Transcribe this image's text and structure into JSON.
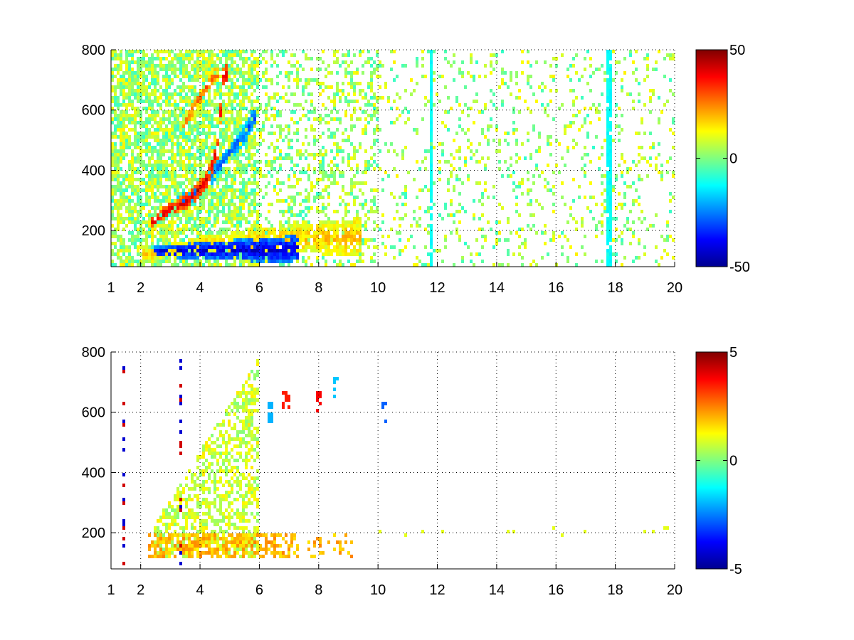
{
  "chart_data": [
    {
      "type": "heatmap",
      "colormap": "jet",
      "x_range": [
        1,
        20
      ],
      "y_range": [
        80,
        800
      ],
      "x_ticks": [
        {
          "value": 1,
          "label": "1"
        },
        {
          "value": 2,
          "label": "2"
        },
        {
          "value": 4,
          "label": "4"
        },
        {
          "value": 6,
          "label": "6"
        },
        {
          "value": 8,
          "label": "8"
        },
        {
          "value": 10,
          "label": "10"
        },
        {
          "value": 12,
          "label": "12"
        },
        {
          "value": 14,
          "label": "14"
        },
        {
          "value": 16,
          "label": "16"
        },
        {
          "value": 18,
          "label": "18"
        },
        {
          "value": 20,
          "label": "20"
        }
      ],
      "y_ticks": [
        {
          "value": 200,
          "label": "200"
        },
        {
          "value": 400,
          "label": "400"
        },
        {
          "value": 600,
          "label": "600"
        },
        {
          "value": 800,
          "label": "800"
        }
      ],
      "colorbar": {
        "range": [
          -50,
          50
        ],
        "ticks": [
          {
            "value": 50,
            "label": "50"
          },
          {
            "value": 0,
            "label": "0"
          },
          {
            "value": -50,
            "label": "-50"
          }
        ]
      },
      "grid": true,
      "ridges": [
        {
          "xs": [
            2.4,
            3.0,
            3.6,
            4.2,
            4.6,
            4.8
          ],
          "ys": [
            230,
            270,
            300,
            360,
            470,
            720
          ],
          "value": 42
        },
        {
          "xs": [
            3.3,
            3.8,
            4.4,
            5.0,
            5.5,
            5.8
          ],
          "ys": [
            300,
            320,
            380,
            460,
            520,
            570
          ],
          "value": -28
        },
        {
          "xs": [
            3.5,
            3.8,
            4.1,
            4.5
          ],
          "ys": [
            560,
            610,
            660,
            720
          ],
          "value": 28
        },
        {
          "xs": [
            2.5,
            3.5,
            4.5,
            5.5,
            6.5,
            7.2
          ],
          "ys": [
            130,
            132,
            135,
            135,
            135,
            138
          ],
          "value": -42
        },
        {
          "xs": [
            2.2,
            4.0,
            7.0,
            9.3
          ],
          "ys": [
            120,
            150,
            170,
            180
          ],
          "value": 18
        }
      ],
      "noise_value_range": [
        -8,
        14
      ],
      "stripes": [
        {
          "x": 11.8,
          "value": -12
        },
        {
          "x": 17.8,
          "value": -12
        }
      ]
    },
    {
      "type": "heatmap",
      "colormap": "jet",
      "x_range": [
        1,
        20
      ],
      "y_range": [
        80,
        800
      ],
      "x_ticks": [
        {
          "value": 1,
          "label": "1"
        },
        {
          "value": 2,
          "label": "2"
        },
        {
          "value": 4,
          "label": "4"
        },
        {
          "value": 6,
          "label": "6"
        },
        {
          "value": 8,
          "label": "8"
        },
        {
          "value": 10,
          "label": "10"
        },
        {
          "value": 12,
          "label": "12"
        },
        {
          "value": 14,
          "label": "14"
        },
        {
          "value": 16,
          "label": "16"
        },
        {
          "value": 18,
          "label": "18"
        },
        {
          "value": 20,
          "label": "20"
        }
      ],
      "y_ticks": [
        {
          "value": 200,
          "label": "200"
        },
        {
          "value": 400,
          "label": "400"
        },
        {
          "value": 600,
          "label": "600"
        },
        {
          "value": 800,
          "label": "800"
        }
      ],
      "colorbar": {
        "range": [
          -5,
          5
        ],
        "ticks": [
          {
            "value": 5,
            "label": "5"
          },
          {
            "value": 0,
            "label": "0"
          },
          {
            "value": -5,
            "label": "-5"
          }
        ]
      },
      "grid": true,
      "band_value_range": [
        0,
        1.5
      ],
      "low_band_value_range": [
        1.5,
        2.5
      ],
      "hotspots": [
        {
          "x": 6.9,
          "y": 640,
          "value": 3.5
        },
        {
          "x": 8.0,
          "y": 640,
          "value": 3.8
        },
        {
          "x": 8.6,
          "y": 680,
          "value": -1.8
        },
        {
          "x": 6.4,
          "y": 600,
          "value": -2.0
        },
        {
          "x": 10.2,
          "y": 600,
          "value": -2.8
        }
      ]
    }
  ]
}
